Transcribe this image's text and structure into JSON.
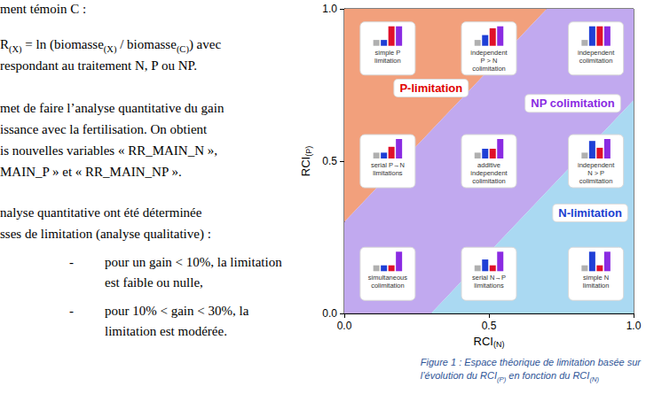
{
  "text_column": {
    "lines": [
      "ment témoin C :",
      "R(X) = ln (biomasse(X) / biomasse(C)) avec",
      "respondant au traitement N, P ou NP.",
      "met de faire l’analyse quantitative du gain",
      "issance avec la fertilisation. On obtient",
      "is nouvelles variables « RR_MAIN_N »,",
      "MAIN_P » et « RR_MAIN_NP ».",
      "nalyse quantitative ont été déterminée",
      "sses de limitation (analyse qualitative) :"
    ],
    "bullet_marker": "-",
    "bullets": [
      [
        "pour un gain < 10%, la limitation",
        "est faible ou nulle,"
      ],
      [
        "pour 10% < gain < 30%, la",
        "limitation est modérée."
      ]
    ]
  },
  "chart_data": {
    "type": "region_map",
    "xlabel": "RCI(N)",
    "ylabel": "RCI(P)",
    "xlim": [
      0,
      1
    ],
    "ylim": [
      0,
      1
    ],
    "xticks": [
      {
        "value": 0,
        "label": "0.0"
      },
      {
        "value": 0.5,
        "label": "0.5"
      },
      {
        "value": 1,
        "label": "1.0"
      }
    ],
    "yticks": [
      {
        "value": 0,
        "label": "0.0"
      },
      {
        "value": 0.5,
        "label": "0.5"
      },
      {
        "value": 1,
        "label": "1.0"
      }
    ],
    "grid": false,
    "regions": [
      {
        "name": "P-limitation",
        "color": "#f2a07c",
        "label_color": "#e00000",
        "polygon": [
          [
            0,
            0.3
          ],
          [
            0,
            1
          ],
          [
            0.7,
            1
          ]
        ],
        "label_at": [
          0.3,
          0.74
        ]
      },
      {
        "name": "NP colimitation",
        "color": "#c1a9ef",
        "label_color": "#8a2be2",
        "polygon": [
          [
            0,
            0
          ],
          [
            0,
            0.3
          ],
          [
            0.7,
            1
          ],
          [
            1,
            1
          ],
          [
            1,
            0.7
          ],
          [
            0.3,
            0
          ]
        ],
        "label_at": [
          0.79,
          0.69
        ]
      },
      {
        "name": "N-limitation",
        "color": "#aad9f2",
        "label_color": "#1a3fd0",
        "polygon": [
          [
            0.3,
            0
          ],
          [
            1,
            0
          ],
          [
            1,
            0.7
          ]
        ],
        "label_at": [
          0.85,
          0.33
        ]
      }
    ],
    "icon_bar_colors": [
      "#b0b0b0",
      "#1f3fd6",
      "#e0102a",
      "#8a2be2"
    ],
    "icons": [
      {
        "label": "simple P\nlimitation",
        "x": 0.15,
        "y": 0.87,
        "values": [
          0.3,
          0.3,
          1,
          1
        ]
      },
      {
        "label": "independent\nP > N\ncolimitation",
        "x": 0.5,
        "y": 0.87,
        "values": [
          0.3,
          0.55,
          0.9,
          1
        ]
      },
      {
        "label": "independent\ncolimitation",
        "x": 0.87,
        "y": 0.87,
        "values": [
          0.3,
          1,
          1,
          1
        ]
      },
      {
        "label": "serial P→N\nlimitations",
        "x": 0.15,
        "y": 0.5,
        "values": [
          0.3,
          0.3,
          0.6,
          1
        ]
      },
      {
        "label": "additive\nindependent\ncolimitation",
        "x": 0.5,
        "y": 0.5,
        "values": [
          0.3,
          0.5,
          0.5,
          1
        ]
      },
      {
        "label": "independent\nN > P\ncolimitation",
        "x": 0.87,
        "y": 0.5,
        "values": [
          0.3,
          0.9,
          0.55,
          1
        ]
      },
      {
        "label": "simultaneous\ncolimitation",
        "x": 0.15,
        "y": 0.13,
        "values": [
          0.3,
          0.3,
          0.3,
          1
        ]
      },
      {
        "label": "serial N→P\nlimitations",
        "x": 0.5,
        "y": 0.13,
        "values": [
          0.3,
          0.6,
          0.3,
          1
        ]
      },
      {
        "label": "simple N\nlimitation",
        "x": 0.87,
        "y": 0.13,
        "values": [
          0.3,
          1,
          0.3,
          1
        ]
      }
    ]
  },
  "caption": [
    "Figure 1 : Espace théorique de limitation basée sur",
    "l’évolution du RCI(P) en fonction du RCI(N)"
  ]
}
